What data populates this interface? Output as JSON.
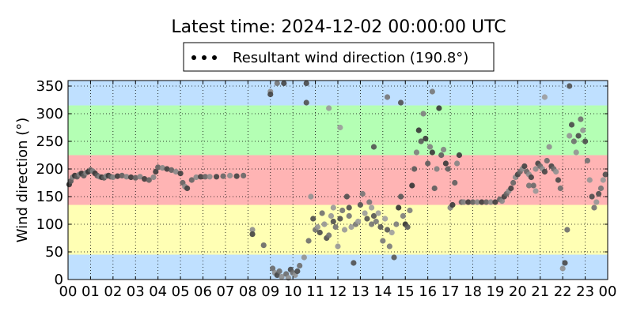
{
  "chart_data": {
    "type": "scatter",
    "title": "Latest time: 2024-12-02 00:00:00 UTC",
    "ylabel": "Wind direction (°)",
    "xlabel": "",
    "legend": {
      "label": "Resultant wind direction (190.8°)",
      "placement": "top-center"
    },
    "xlim": [
      0,
      24
    ],
    "ylim": [
      0,
      360
    ],
    "x_ticks": [
      "00",
      "01",
      "02",
      "03",
      "04",
      "05",
      "06",
      "07",
      "08",
      "09",
      "10",
      "11",
      "12",
      "13",
      "14",
      "15",
      "16",
      "17",
      "18",
      "19",
      "20",
      "21",
      "22",
      "23",
      "00"
    ],
    "y_ticks": [
      0,
      50,
      100,
      150,
      200,
      250,
      300,
      350
    ],
    "grid": true,
    "bands": [
      {
        "from": 0,
        "to": 45,
        "color": "#bfe0ff"
      },
      {
        "from": 45,
        "to": 135,
        "color": "#ffffb4"
      },
      {
        "from": 135,
        "to": 225,
        "color": "#ffb4b4"
      },
      {
        "from": 225,
        "to": 315,
        "color": "#b4ffb4"
      },
      {
        "from": 315,
        "to": 360,
        "color": "#bfe0ff"
      }
    ],
    "series": [
      {
        "points": [
          [
            0.05,
            172
          ],
          [
            0.12,
            178
          ],
          [
            0.2,
            185
          ],
          [
            0.3,
            188
          ],
          [
            0.4,
            186
          ],
          [
            0.5,
            190
          ],
          [
            0.6,
            192
          ],
          [
            0.7,
            188
          ],
          [
            0.8,
            193
          ],
          [
            0.9,
            195
          ],
          [
            1.0,
            198
          ],
          [
            1.1,
            196
          ],
          [
            1.2,
            192
          ],
          [
            1.3,
            188
          ],
          [
            1.4,
            186
          ],
          [
            1.5,
            185
          ],
          [
            1.6,
            184
          ],
          [
            1.7,
            187
          ],
          [
            1.8,
            188
          ],
          [
            1.9,
            186
          ],
          [
            2.0,
            185
          ],
          [
            2.2,
            187
          ],
          [
            2.4,
            188
          ],
          [
            2.6,
            186
          ],
          [
            2.8,
            185
          ],
          [
            3.0,
            184
          ],
          [
            3.2,
            186
          ],
          [
            3.4,
            182
          ],
          [
            3.6,
            180
          ],
          [
            3.8,
            185
          ],
          [
            3.9,
            195
          ],
          [
            4.0,
            203
          ],
          [
            4.2,
            202
          ],
          [
            4.4,
            200
          ],
          [
            4.6,
            198
          ],
          [
            4.8,
            195
          ],
          [
            5.0,
            192
          ],
          [
            5.1,
            175
          ],
          [
            5.2,
            168
          ],
          [
            5.3,
            165
          ],
          [
            5.5,
            180
          ],
          [
            5.7,
            185
          ],
          [
            5.9,
            186
          ],
          [
            6.1,
            186
          ],
          [
            6.3,
            186
          ],
          [
            6.6,
            186
          ],
          [
            6.9,
            187
          ],
          [
            7.2,
            188
          ],
          [
            7.5,
            187
          ],
          [
            7.8,
            188
          ],
          [
            8.2,
            90
          ],
          [
            8.2,
            82
          ],
          [
            8.7,
            62
          ],
          [
            9.0,
            340
          ],
          [
            9.0,
            335
          ],
          [
            9.1,
            20
          ],
          [
            9.2,
            12
          ],
          [
            9.3,
            8
          ],
          [
            9.4,
            15
          ],
          [
            9.5,
            5
          ],
          [
            9.6,
            355
          ],
          [
            9.7,
            10
          ],
          [
            9.8,
            3
          ],
          [
            9.9,
            18
          ],
          [
            10.0,
            12
          ],
          [
            10.1,
            8
          ],
          [
            10.2,
            15
          ],
          [
            10.3,
            25
          ],
          [
            10.5,
            40
          ],
          [
            10.6,
            355
          ],
          [
            10.7,
            70
          ],
          [
            10.8,
            150
          ],
          [
            10.9,
            110
          ],
          [
            11.0,
            90
          ],
          [
            11.1,
            95
          ],
          [
            11.2,
            85
          ],
          [
            11.3,
            120
          ],
          [
            11.4,
            100
          ],
          [
            11.5,
            75
          ],
          [
            11.6,
            80
          ],
          [
            11.7,
            115
          ],
          [
            11.8,
            105
          ],
          [
            11.9,
            95
          ],
          [
            12.0,
            60
          ],
          [
            12.1,
            110
          ],
          [
            12.2,
            125
          ],
          [
            12.3,
            90
          ],
          [
            12.4,
            150
          ],
          [
            12.5,
            115
          ],
          [
            12.6,
            95
          ],
          [
            12.7,
            30
          ],
          [
            12.8,
            100
          ],
          [
            12.9,
            105
          ],
          [
            13.0,
            135
          ],
          [
            13.1,
            155
          ],
          [
            13.2,
            120
          ],
          [
            13.3,
            110
          ],
          [
            13.4,
            140
          ],
          [
            13.5,
            130
          ],
          [
            13.6,
            115
          ],
          [
            13.7,
            105
          ],
          [
            13.8,
            120
          ],
          [
            13.9,
            95
          ],
          [
            14.0,
            70
          ],
          [
            14.1,
            110
          ],
          [
            14.2,
            90
          ],
          [
            14.3,
            60
          ],
          [
            14.4,
            85
          ],
          [
            14.5,
            40
          ],
          [
            14.6,
            100
          ],
          [
            14.7,
            130
          ],
          [
            14.8,
            150
          ],
          [
            14.9,
            115
          ],
          [
            15.0,
            100
          ],
          [
            15.1,
            95
          ],
          [
            15.2,
            125
          ],
          [
            15.3,
            170
          ],
          [
            15.4,
            200
          ],
          [
            15.5,
            230
          ],
          [
            15.6,
            270
          ],
          [
            15.7,
            250
          ],
          [
            15.8,
            300
          ],
          [
            15.9,
            255
          ],
          [
            16.0,
            210
          ],
          [
            16.1,
            240
          ],
          [
            16.2,
            230
          ],
          [
            16.3,
            165
          ],
          [
            16.4,
            200
          ],
          [
            16.5,
            310
          ],
          [
            16.6,
            225
          ],
          [
            16.7,
            235
          ],
          [
            16.8,
            210
          ],
          [
            16.9,
            200
          ],
          [
            17.0,
            130
          ],
          [
            17.1,
            135
          ],
          [
            17.2,
            175
          ],
          [
            17.3,
            210
          ],
          [
            17.4,
            225
          ],
          [
            17.5,
            140
          ],
          [
            17.6,
            140
          ],
          [
            17.8,
            140
          ],
          [
            18.0,
            140
          ],
          [
            18.2,
            140
          ],
          [
            18.4,
            140
          ],
          [
            18.6,
            140
          ],
          [
            18.8,
            140
          ],
          [
            19.0,
            140
          ],
          [
            19.2,
            145
          ],
          [
            19.3,
            142
          ],
          [
            19.4,
            150
          ],
          [
            19.5,
            155
          ],
          [
            19.6,
            160
          ],
          [
            19.7,
            165
          ],
          [
            19.8,
            175
          ],
          [
            19.9,
            185
          ],
          [
            20.0,
            190
          ],
          [
            20.1,
            195
          ],
          [
            20.2,
            200
          ],
          [
            20.3,
            205
          ],
          [
            20.4,
            195
          ],
          [
            20.5,
            190
          ],
          [
            20.6,
            185
          ],
          [
            20.7,
            170
          ],
          [
            20.8,
            200
          ],
          [
            20.9,
            210
          ],
          [
            21.0,
            205
          ],
          [
            21.1,
            200
          ],
          [
            21.2,
            195
          ],
          [
            21.3,
            215
          ],
          [
            21.4,
            240
          ],
          [
            21.5,
            205
          ],
          [
            21.6,
            200
          ],
          [
            21.7,
            195
          ],
          [
            21.8,
            180
          ],
          [
            21.9,
            165
          ],
          [
            22.0,
            20
          ],
          [
            22.1,
            30
          ],
          [
            22.2,
            90
          ],
          [
            22.3,
            260
          ],
          [
            22.4,
            280
          ],
          [
            22.5,
            250
          ],
          [
            22.6,
            230
          ],
          [
            22.7,
            260
          ],
          [
            22.8,
            290
          ],
          [
            22.9,
            270
          ],
          [
            23.0,
            250
          ],
          [
            23.1,
            215
          ],
          [
            23.2,
            180
          ],
          [
            23.3,
            150
          ],
          [
            23.4,
            130
          ],
          [
            23.5,
            140
          ],
          [
            23.6,
            155
          ],
          [
            23.7,
            165
          ],
          [
            23.8,
            180
          ],
          [
            23.9,
            190
          ],
          [
            20.5,
            170
          ],
          [
            20.8,
            160
          ],
          [
            12.5,
            130
          ],
          [
            13.5,
            100
          ],
          [
            11.8,
            130
          ],
          [
            14.8,
            320
          ],
          [
            14.2,
            330
          ],
          [
            11.6,
            310
          ],
          [
            10.6,
            320
          ],
          [
            9.3,
            355
          ],
          [
            12.1,
            275
          ],
          [
            13.6,
            240
          ],
          [
            16.2,
            340
          ],
          [
            21.2,
            330
          ],
          [
            22.3,
            350
          ]
        ]
      }
    ]
  }
}
